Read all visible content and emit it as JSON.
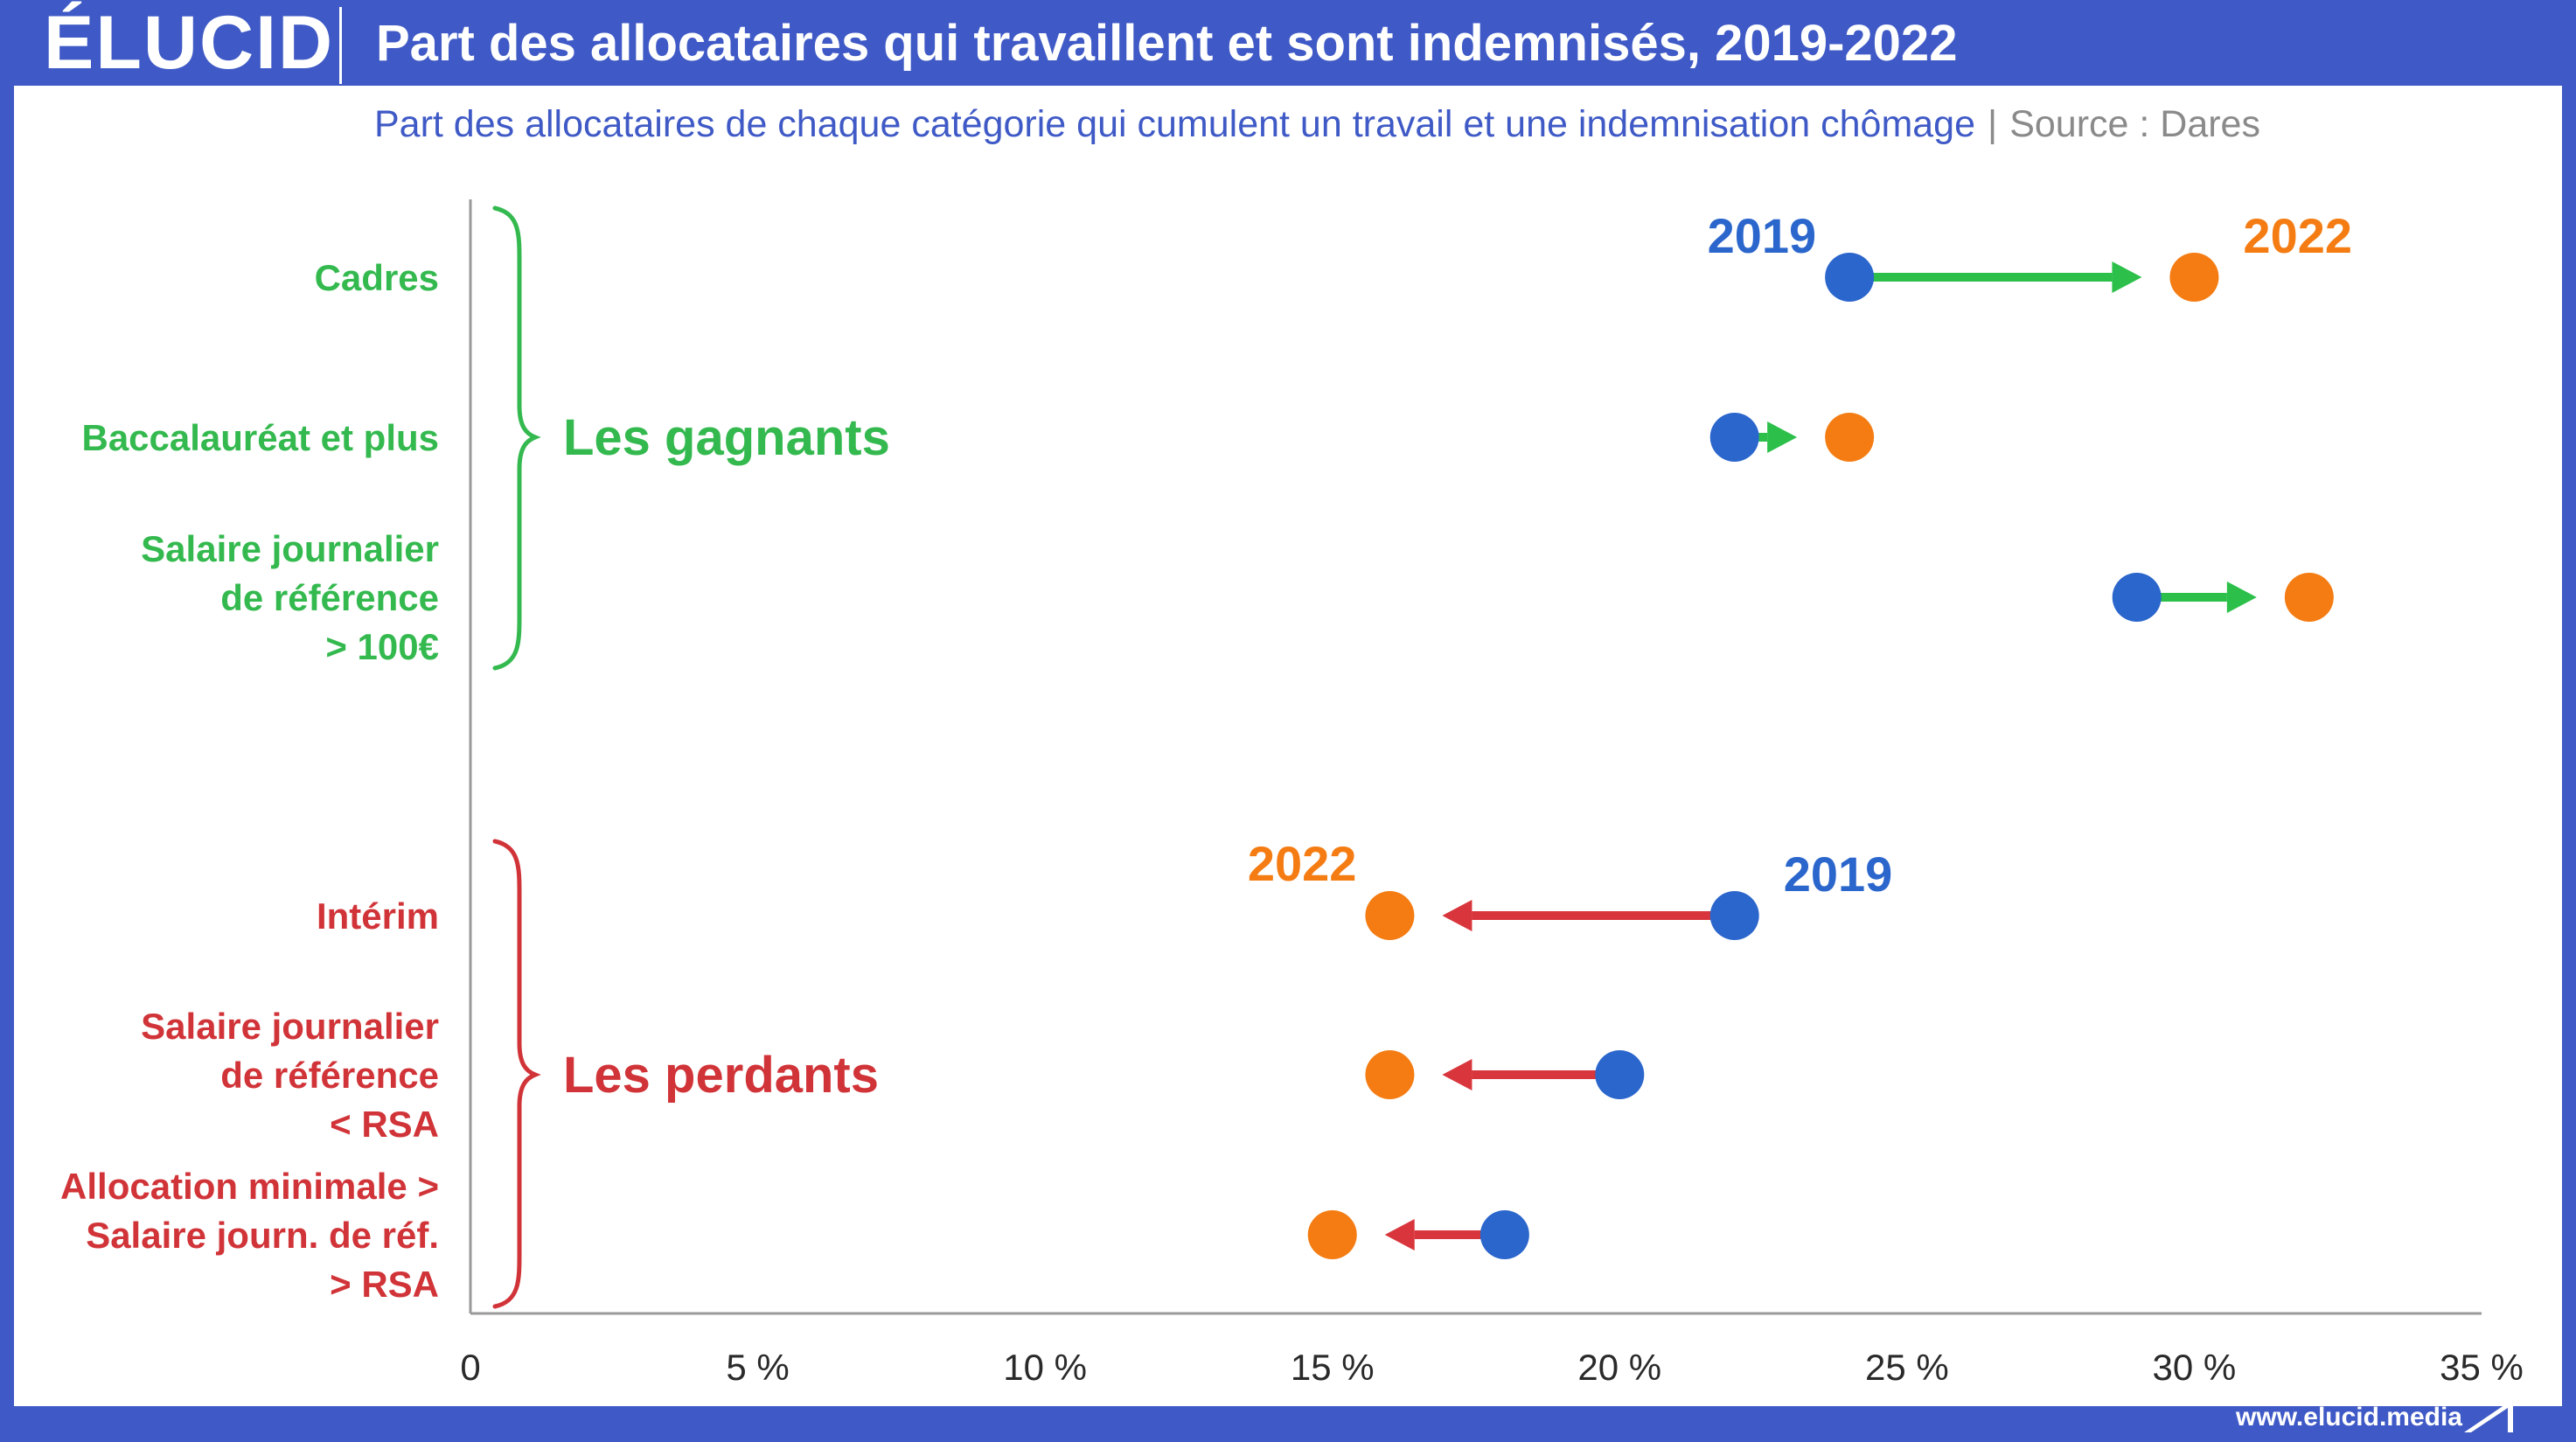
{
  "header": {
    "logo": "ÉLUCID",
    "title": "Part des allocataires qui travaillent et sont indemnisés, 2019-2022"
  },
  "subtitle": {
    "text": "Part des allocataires de chaque catégorie qui cumulent un travail et une indemnisation chômage",
    "separator": "|",
    "source": "Source : Dares"
  },
  "footer": {
    "url": "www.elucid.media"
  },
  "colors": {
    "frame": "#3f5ac6",
    "dot_2019": "#2b66cc",
    "dot_2022": "#f47c13",
    "gain": "#2cc04a",
    "loss": "#d8363c",
    "gain_label": "#34b94f",
    "loss_label": "#d13438",
    "axis": "#9a9a9a"
  },
  "chart_data": {
    "type": "dumbbell",
    "x_range": [
      0,
      35
    ],
    "x_ticks": [
      "0",
      "5 %",
      "10 %",
      "15 %",
      "20 %",
      "25 %",
      "30 %",
      "35 %"
    ],
    "x_tick_values": [
      0,
      5,
      10,
      15,
      20,
      25,
      30,
      35
    ],
    "series": [
      {
        "name": "2019"
      },
      {
        "name": "2022"
      }
    ],
    "groups": [
      {
        "name": "Les gagnants",
        "color_key": "gain",
        "categories": [
          {
            "label": [
              "Cadres"
            ],
            "v2019": 24,
            "v2022": 30
          },
          {
            "label": [
              "Baccalauréat et plus"
            ],
            "v2019": 22,
            "v2022": 24
          },
          {
            "label": [
              "Salaire journalier",
              "de référence",
              "> 100€"
            ],
            "v2019": 29,
            "v2022": 32
          }
        ]
      },
      {
        "name": "Les perdants",
        "color_key": "loss",
        "categories": [
          {
            "label": [
              "Intérim"
            ],
            "v2019": 22,
            "v2022": 16
          },
          {
            "label": [
              "Salaire journalier",
              "de référence",
              "< RSA"
            ],
            "v2019": 20,
            "v2022": 16
          },
          {
            "label": [
              "Allocation minimale >",
              "Salaire journ. de réf.",
              "> RSA"
            ],
            "v2019": 18,
            "v2022": 15
          }
        ]
      }
    ],
    "annotations": [
      {
        "text": "2019",
        "series": "2019",
        "category": "Cadres"
      },
      {
        "text": "2022",
        "series": "2022",
        "category": "Cadres"
      },
      {
        "text": "2022",
        "series": "2022",
        "category": "Intérim"
      },
      {
        "text": "2019",
        "series": "2019",
        "category": "Intérim"
      }
    ]
  }
}
